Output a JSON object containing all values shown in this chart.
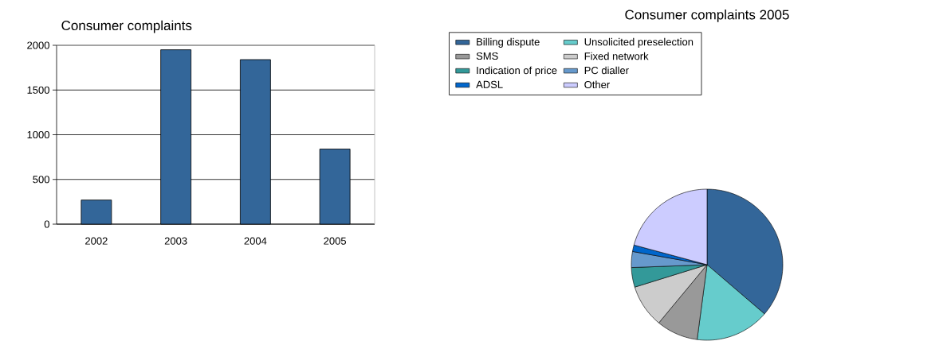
{
  "chart_data": [
    {
      "type": "bar",
      "title": "Consumer complaints",
      "categories": [
        "2002",
        "2003",
        "2004",
        "2005"
      ],
      "values": [
        270,
        1950,
        1840,
        840
      ],
      "color": "#336699",
      "ylim": [
        0,
        2000
      ],
      "yticks": [
        0,
        500,
        1000,
        1500,
        2000
      ],
      "grid": "y"
    },
    {
      "type": "pie",
      "title": "Consumer complaints 2005",
      "categories": [
        "Billing dispute",
        "Unsolicited preselection",
        "SMS",
        "Fixed network",
        "Indication of price",
        "PC dialler",
        "ADSL",
        "Other"
      ],
      "values": [
        36.3,
        15.8,
        8.9,
        9.2,
        4.2,
        3.4,
        1.4,
        20.8
      ],
      "colors": [
        "#336699",
        "#66cccc",
        "#999999",
        "#cccccc",
        "#339999",
        "#6699cc",
        "#0066cc",
        "#ccccff"
      ],
      "legend": "top"
    }
  ]
}
